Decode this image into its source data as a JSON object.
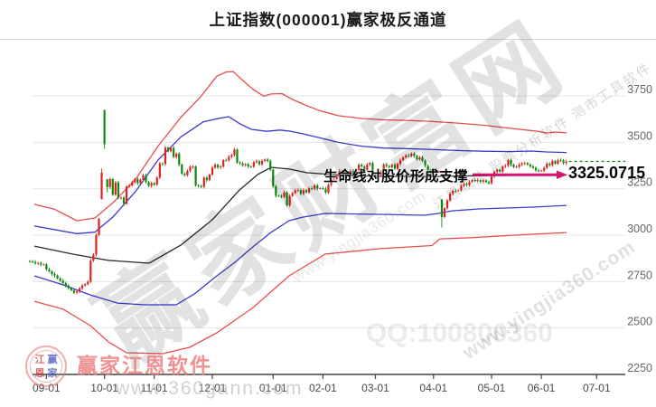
{
  "title": "上证指数(000001)赢家极反通道",
  "annotation": {
    "text": "生命线对股价形成支撑",
    "value_label": "3325.0715"
  },
  "watermarks": {
    "big": "赢家财富网",
    "diag_right": "江恩软件 股票分析软件 测市工具软件",
    "url_bottom_right": "www.yingjia360.com",
    "url_mid": "www.yingjia360.com",
    "qq": "QQ:100800360",
    "logo_name": "赢家江恩软件",
    "logo_url": "www.360gann.com",
    "seal_chars": [
      "江",
      "赢",
      "恩",
      "家"
    ]
  },
  "colors": {
    "candle_up": "#dd2222",
    "candle_down": "#0e8a0e",
    "rail_red": "#e84c4c",
    "rail_blue": "#3a3ad0",
    "life_line": "#2a2a2a",
    "arrow": "#d6156e",
    "last_close_dotted": "#0c860c",
    "grid": "#e6e6e6",
    "axis": "#444444",
    "axis_label": "#666666"
  },
  "chart_data": {
    "type": "candlestick",
    "title": "上证指数(000001)赢家极反通道",
    "ylabel": "",
    "xlabel": "",
    "y_ticks": [
      3750,
      3500,
      3250,
      3000,
      2750,
      2500,
      2250
    ],
    "x_tick_labels": [
      "09-01",
      "10-01",
      "11-01",
      "12-01",
      "01-01",
      "02-01",
      "03-01",
      "04-01",
      "05-01",
      "06-01",
      "07-01"
    ],
    "x_tick_indices": [
      6,
      27,
      45,
      66,
      88,
      106,
      125,
      146,
      167,
      185,
      205
    ],
    "grid": "horizontal-only",
    "life_line_value": 3325.0715,
    "last_close": 3397,
    "candles": {
      "first_open": 2860,
      "closes": [
        2858,
        2855,
        2848,
        2850,
        2842,
        2842,
        2815,
        2805,
        2790,
        2783,
        2767,
        2755,
        2742,
        2728,
        2716,
        2703,
        2690,
        2697,
        2714,
        2729,
        2736,
        2749,
        2863,
        2896,
        3001,
        3087,
        3336,
        3490,
        3259,
        3302,
        3218,
        3284,
        3201,
        3202,
        3169,
        3262,
        3268,
        3286,
        3302,
        3280,
        3299,
        3322,
        3286,
        3266,
        3280,
        3272,
        3310,
        3386,
        3383,
        3471,
        3452,
        3470,
        3421,
        3439,
        3380,
        3331,
        3323,
        3346,
        3368,
        3370,
        3267,
        3264,
        3260,
        3310,
        3296,
        3326,
        3364,
        3379,
        3365,
        3369,
        3404,
        3403,
        3422,
        3432,
        3461,
        3391,
        3386,
        3376,
        3382,
        3370,
        3368,
        3393,
        3398,
        3382,
        3400,
        3407,
        3399,
        3352,
        3263,
        3212,
        3211,
        3206,
        3230,
        3161,
        3211,
        3227,
        3241,
        3242,
        3223,
        3243,
        3230,
        3252,
        3250,
        3268,
        3251,
        3253,
        3250,
        3229,
        3271,
        3303,
        3304,
        3318,
        3346,
        3339,
        3332,
        3324,
        3346,
        3324,
        3351,
        3379,
        3370,
        3351,
        3380,
        3388,
        3321,
        3317,
        3324,
        3341,
        3381,
        3372,
        3366,
        3379,
        3358,
        3384,
        3404,
        3419,
        3429,
        3426,
        3439,
        3427,
        3408,
        3418,
        3401,
        3373,
        3351,
        3336,
        3350,
        3342,
        3343,
        3097,
        3145,
        3187,
        3223,
        3239,
        3238,
        3241,
        3267,
        3276,
        3271,
        3287,
        3297,
        3292,
        3296,
        3288,
        3295,
        3286,
        3279,
        3316,
        3342,
        3352,
        3342,
        3369,
        3374,
        3404,
        3380,
        3367,
        3368,
        3380,
        3387,
        3388,
        3380,
        3370,
        3363,
        3349,
        3347,
        3347,
        3362,
        3385,
        3377,
        3399,
        3385,
        3403,
        3402,
        3388,
        3397
      ],
      "ohlc_overrides": {
        "26": [
          3193,
          3359,
          3193,
          3336
        ],
        "27": [
          3674,
          3674,
          3464,
          3490
        ],
        "28": [
          3301,
          3301,
          3230,
          3259
        ],
        "149": [
          3193,
          3193,
          3041,
          3097
        ]
      }
    },
    "channel_lines": {
      "upper_red": [
        [
          38,
          3166
        ],
        [
          60,
          3140
        ],
        [
          85,
          3078
        ],
        [
          105,
          3092
        ],
        [
          125,
          3175
        ],
        [
          150,
          3300
        ],
        [
          175,
          3480
        ],
        [
          200,
          3633
        ],
        [
          222,
          3745
        ],
        [
          240,
          3856
        ],
        [
          250,
          3878
        ],
        [
          258,
          3881
        ],
        [
          268,
          3836
        ],
        [
          280,
          3785
        ],
        [
          292,
          3748
        ],
        [
          300,
          3760
        ],
        [
          312,
          3762
        ],
        [
          322,
          3735
        ],
        [
          335,
          3706
        ],
        [
          355,
          3668
        ],
        [
          375,
          3643
        ],
        [
          400,
          3628
        ],
        [
          425,
          3621
        ],
        [
          450,
          3618
        ],
        [
          475,
          3613
        ],
        [
          505,
          3604
        ],
        [
          535,
          3592
        ],
        [
          565,
          3575
        ],
        [
          595,
          3559
        ],
        [
          605,
          3550
        ],
        [
          615,
          3555
        ],
        [
          627,
          3551
        ]
      ],
      "upper_blue": [
        [
          38,
          3049
        ],
        [
          60,
          3030
        ],
        [
          85,
          3008
        ],
        [
          105,
          3016
        ],
        [
          125,
          3098
        ],
        [
          150,
          3235
        ],
        [
          175,
          3405
        ],
        [
          200,
          3528
        ],
        [
          225,
          3610
        ],
        [
          240,
          3627
        ],
        [
          253,
          3638
        ],
        [
          265,
          3601
        ],
        [
          278,
          3570
        ],
        [
          295,
          3559
        ],
        [
          310,
          3566
        ],
        [
          322,
          3559
        ],
        [
          335,
          3546
        ],
        [
          355,
          3523
        ],
        [
          375,
          3499
        ],
        [
          400,
          3479
        ],
        [
          425,
          3469
        ],
        [
          450,
          3466
        ],
        [
          475,
          3462
        ],
        [
          505,
          3456
        ],
        [
          535,
          3452
        ],
        [
          565,
          3450
        ],
        [
          588,
          3453
        ],
        [
          605,
          3448
        ],
        [
          627,
          3445
        ]
      ],
      "life_line": [
        [
          38,
          2941
        ],
        [
          80,
          2898
        ],
        [
          120,
          2864
        ],
        [
          165,
          2849
        ],
        [
          200,
          2946
        ],
        [
          235,
          3083
        ],
        [
          265,
          3243
        ],
        [
          285,
          3326
        ],
        [
          300,
          3365
        ],
        [
          320,
          3356
        ],
        [
          340,
          3336
        ],
        [
          380,
          3322
        ],
        [
          430,
          3316
        ],
        [
          480,
          3316
        ],
        [
          530,
          3320
        ],
        [
          580,
          3323
        ],
        [
          627,
          3325
        ]
      ],
      "lower_blue": [
        [
          38,
          2781
        ],
        [
          70,
          2732
        ],
        [
          100,
          2678
        ],
        [
          130,
          2634
        ],
        [
          160,
          2625
        ],
        [
          195,
          2625
        ],
        [
          215,
          2683
        ],
        [
          240,
          2781
        ],
        [
          260,
          2854
        ],
        [
          280,
          2937
        ],
        [
          300,
          3015
        ],
        [
          320,
          3078
        ],
        [
          335,
          3097
        ],
        [
          360,
          3117
        ],
        [
          420,
          3112
        ],
        [
          470,
          3107
        ],
        [
          485,
          3117
        ],
        [
          500,
          3131
        ],
        [
          530,
          3141
        ],
        [
          560,
          3146
        ],
        [
          590,
          3151
        ],
        [
          627,
          3160
        ]
      ],
      "lower_red": [
        [
          38,
          2644
        ],
        [
          70,
          2601
        ],
        [
          100,
          2513
        ],
        [
          120,
          2425
        ],
        [
          140,
          2367
        ],
        [
          180,
          2362
        ],
        [
          210,
          2396
        ],
        [
          240,
          2474
        ],
        [
          280,
          2610
        ],
        [
          320,
          2781
        ],
        [
          360,
          2898
        ],
        [
          420,
          2927
        ],
        [
          478,
          2944
        ],
        [
          487,
          2980
        ],
        [
          520,
          2986
        ],
        [
          570,
          3000
        ],
        [
          627,
          3014
        ]
      ]
    }
  }
}
